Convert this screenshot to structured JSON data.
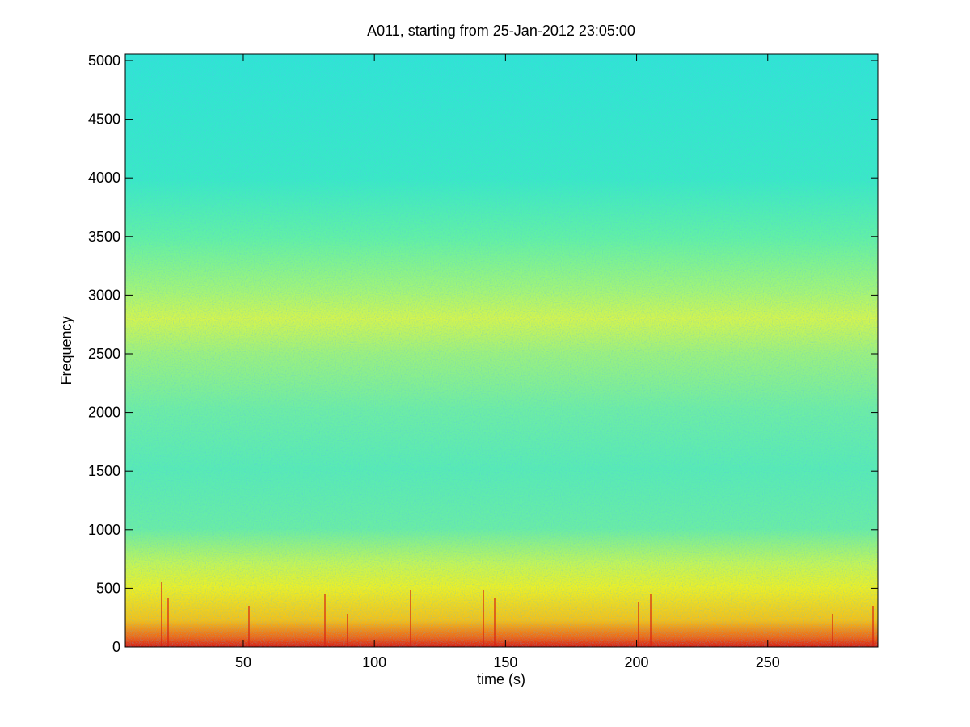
{
  "chart_data": {
    "type": "heatmap",
    "title": "A011, starting from 25-Jan-2012 23:05:00",
    "x_label": "time (s)",
    "y_label": "Frequency",
    "xlim": [
      5,
      292
    ],
    "xticks": [
      50,
      100,
      150,
      200,
      250
    ],
    "ylim": [
      0,
      5055
    ],
    "yticks": [
      0,
      500,
      1000,
      1500,
      2000,
      2500,
      3000,
      3500,
      4000,
      4500,
      5000
    ]
  }
}
